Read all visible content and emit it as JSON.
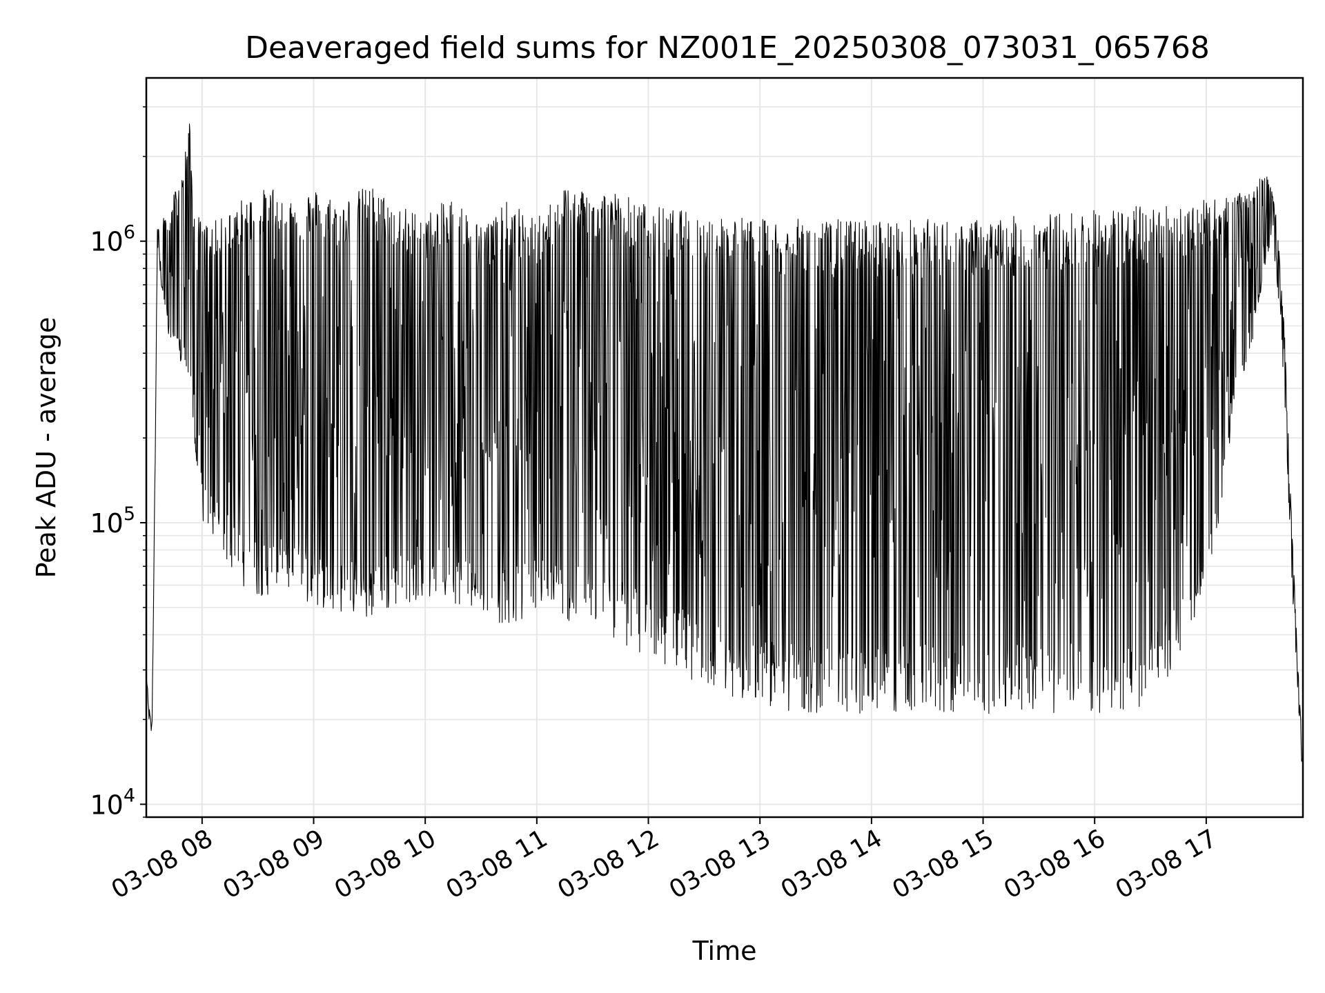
{
  "chart_data": {
    "type": "line",
    "title": "Deaveraged field sums for NZ001E_20250308_073031_065768",
    "xlabel": "Time",
    "ylabel": "Peak ADU - average",
    "yscale": "log",
    "ylim": [
      9000,
      3800000
    ],
    "xlim": [
      "2025-03-08 07:30",
      "2025-03-08 17:52"
    ],
    "grid": true,
    "line_color": "#000000",
    "x_tick_labels": [
      "03-08 08",
      "03-08 09",
      "03-08 10",
      "03-08 11",
      "03-08 12",
      "03-08 13",
      "03-08 14",
      "03-08 15",
      "03-08 16",
      "03-08 17"
    ],
    "x_ticks": [
      "2025-03-08 08:00",
      "2025-03-08 09:00",
      "2025-03-08 10:00",
      "2025-03-08 11:00",
      "2025-03-08 12:00",
      "2025-03-08 13:00",
      "2025-03-08 14:00",
      "2025-03-08 15:00",
      "2025-03-08 16:00",
      "2025-03-08 17:00"
    ],
    "y_ticks": [
      {
        "value": 10000,
        "base": "10",
        "exp": "4"
      },
      {
        "value": 100000,
        "base": "10",
        "exp": "5"
      },
      {
        "value": 1000000,
        "base": "10",
        "exp": "6"
      }
    ],
    "series": [
      {
        "x": [
          "2025-03-08 07:30",
          "2025-03-08 07:31",
          "2025-03-08 07:33",
          "2025-03-08 07:34",
          "2025-03-08 07:36",
          "2025-03-08 07:38",
          "2025-03-08 07:40",
          "2025-03-08 07:42",
          "2025-03-08 07:45",
          "2025-03-08 07:50",
          "2025-03-08 07:53",
          "2025-03-08 07:55",
          "2025-03-08 08:00",
          "2025-03-08 08:10",
          "2025-03-08 08:20",
          "2025-03-08 08:30",
          "2025-03-08 08:40",
          "2025-03-08 08:50",
          "2025-03-08 09:00",
          "2025-03-08 09:15",
          "2025-03-08 09:30",
          "2025-03-08 09:45",
          "2025-03-08 10:00",
          "2025-03-08 10:15",
          "2025-03-08 10:30",
          "2025-03-08 10:45",
          "2025-03-08 11:00",
          "2025-03-08 11:15",
          "2025-03-08 11:30",
          "2025-03-08 11:45",
          "2025-03-08 12:00",
          "2025-03-08 12:15",
          "2025-03-08 12:30",
          "2025-03-08 12:45",
          "2025-03-08 13:00",
          "2025-03-08 13:30",
          "2025-03-08 14:00",
          "2025-03-08 14:30",
          "2025-03-08 15:00",
          "2025-03-08 15:30",
          "2025-03-08 16:00",
          "2025-03-08 16:30",
          "2025-03-08 17:00",
          "2025-03-08 17:15",
          "2025-03-08 17:25",
          "2025-03-08 17:33",
          "2025-03-08 17:38",
          "2025-03-08 17:42",
          "2025-03-08 17:46",
          "2025-03-08 17:50",
          "2025-03-08 17:52"
        ],
        "y_upper": [
          30000,
          25000,
          20000,
          65000,
          1150000,
          1050000,
          1300000,
          1100000,
          1500000,
          1800000,
          2900000,
          1400000,
          1150000,
          1200000,
          1400000,
          1500000,
          1600000,
          1450000,
          1550000,
          1400000,
          1600000,
          1350000,
          1250000,
          1450000,
          1150000,
          1400000,
          1200000,
          1600000,
          1550000,
          1500000,
          1350000,
          1300000,
          1250000,
          1250000,
          1200000,
          1200000,
          1200000,
          1200000,
          1200000,
          1250000,
          1300000,
          1350000,
          1400000,
          1450000,
          1550000,
          1800000,
          1200000,
          500000,
          100000,
          25000,
          15000
        ],
        "y_lower": [
          30000,
          22000,
          18000,
          60000,
          900000,
          700000,
          600000,
          450000,
          400000,
          350000,
          300000,
          200000,
          100000,
          80000,
          60000,
          55000,
          55000,
          55000,
          50000,
          48000,
          45000,
          50000,
          55000,
          52000,
          48000,
          42000,
          50000,
          45000,
          42000,
          38000,
          32000,
          30000,
          26000,
          24000,
          22000,
          21000,
          21000,
          21000,
          21000,
          21000,
          21000,
          22000,
          45000,
          250000,
          450000,
          900000,
          700000,
          300000,
          60000,
          20000,
          13000
        ]
      }
    ]
  }
}
